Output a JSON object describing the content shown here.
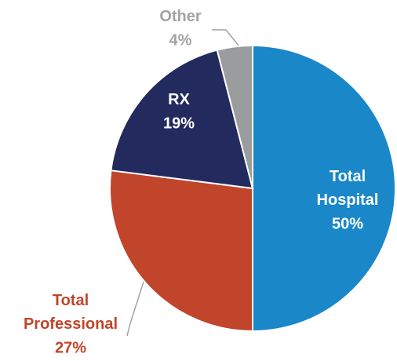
{
  "chart_data": {
    "type": "pie",
    "categories": [
      "Total Hospital",
      "Total Professional",
      "RX",
      "Other"
    ],
    "values": [
      50,
      27,
      19,
      4
    ],
    "value_labels": [
      "50%",
      "27%",
      "19%",
      "4%"
    ],
    "colors": [
      "#1a87c8",
      "#c0452a",
      "#232a5e",
      "#9a9c9e"
    ]
  }
}
